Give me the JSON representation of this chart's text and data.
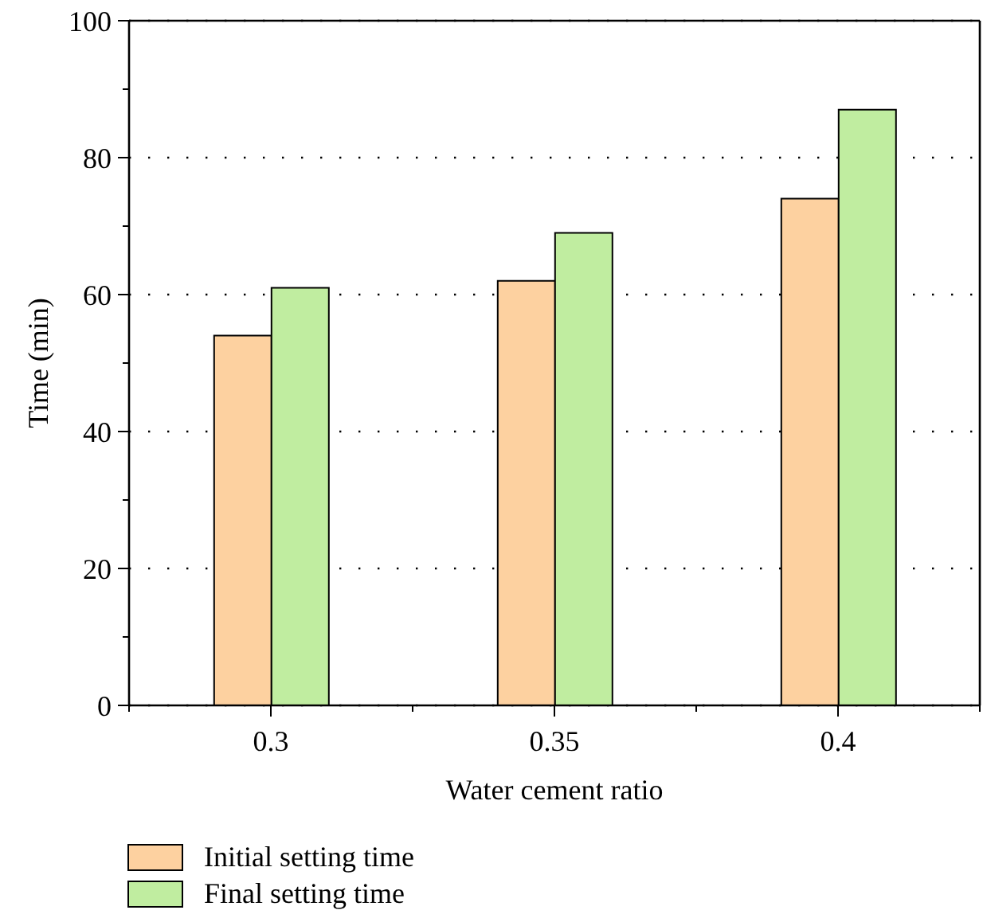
{
  "chart_data": {
    "type": "bar",
    "xlabel": "Water cement ratio",
    "ylabel": "Time (min)",
    "categories": [
      "0.3",
      "0.35",
      "0.4"
    ],
    "series": [
      {
        "name": "Initial setting time",
        "color": "#fdd1a0",
        "values": [
          54,
          62,
          74
        ]
      },
      {
        "name": "Final setting time",
        "color": "#c0eda0",
        "values": [
          61,
          69,
          87
        ]
      }
    ],
    "ylim": [
      0,
      100
    ],
    "yticks": [
      0,
      {
        "value": 10,
        "label": null
      },
      20,
      {
        "value": 30,
        "label": null
      },
      40,
      {
        "value": 50,
        "label": null
      },
      60,
      {
        "value": 70,
        "label": null
      },
      80,
      {
        "value": 90,
        "label": null
      },
      100
    ],
    "grid": "y",
    "legend": "bottom left"
  }
}
